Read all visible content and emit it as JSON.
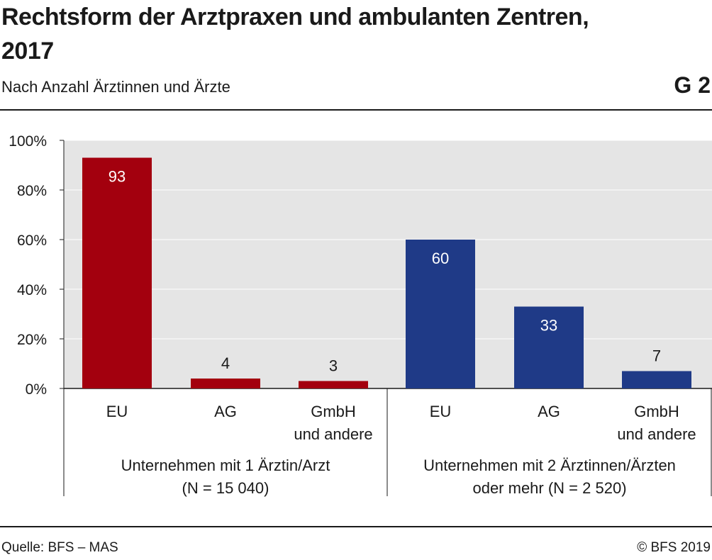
{
  "header": {
    "title": "Rechtsform der Arztpraxen und ambulanten Zentren, 2017",
    "subtitle": "Nach Anzahl Ärztinnen und Ärzte",
    "figure_id": "G 2"
  },
  "footer": {
    "source": "Quelle: BFS – MAS",
    "copyright": "© BFS 2019"
  },
  "colors": {
    "plot_background": "#e5e5e5",
    "group1": "#a3000e",
    "group2": "#1f3a87",
    "label_inside": "#ffffff",
    "label_outside": "#1a1a1a"
  },
  "chart_data": {
    "type": "bar",
    "title": "Rechtsform der Arztpraxen und ambulanten Zentren, 2017",
    "subtitle": "Nach Anzahl Ärztinnen und Ärzte",
    "ylim": [
      0,
      100
    ],
    "yticks": [
      0,
      20,
      40,
      60,
      80,
      100
    ],
    "ytick_labels": [
      "0%",
      "20%",
      "40%",
      "60%",
      "80%",
      "100%"
    ],
    "grid": true,
    "legend": "none",
    "groups": [
      {
        "name": "Unternehmen mit 1 Ärztin/Arzt (N = 15 040)",
        "label_lines": [
          "Unternehmen mit 1 Ärztin/Arzt",
          "(N = 15 040)"
        ],
        "color": "#a3000e",
        "categories": [
          [
            "EU"
          ],
          [
            "AG"
          ],
          [
            "GmbH",
            "und andere"
          ]
        ],
        "values": [
          93,
          4,
          3
        ]
      },
      {
        "name": "Unternehmen mit 2 Ärztinnen/Ärzten oder mehr (N = 2 520)",
        "label_lines": [
          "Unternehmen mit 2 Ärztinnen/Ärzten",
          "oder mehr (N = 2 520)"
        ],
        "color": "#1f3a87",
        "categories": [
          [
            "EU"
          ],
          [
            "AG"
          ],
          [
            "GmbH",
            "und andere"
          ]
        ],
        "values": [
          60,
          33,
          7
        ]
      }
    ]
  }
}
